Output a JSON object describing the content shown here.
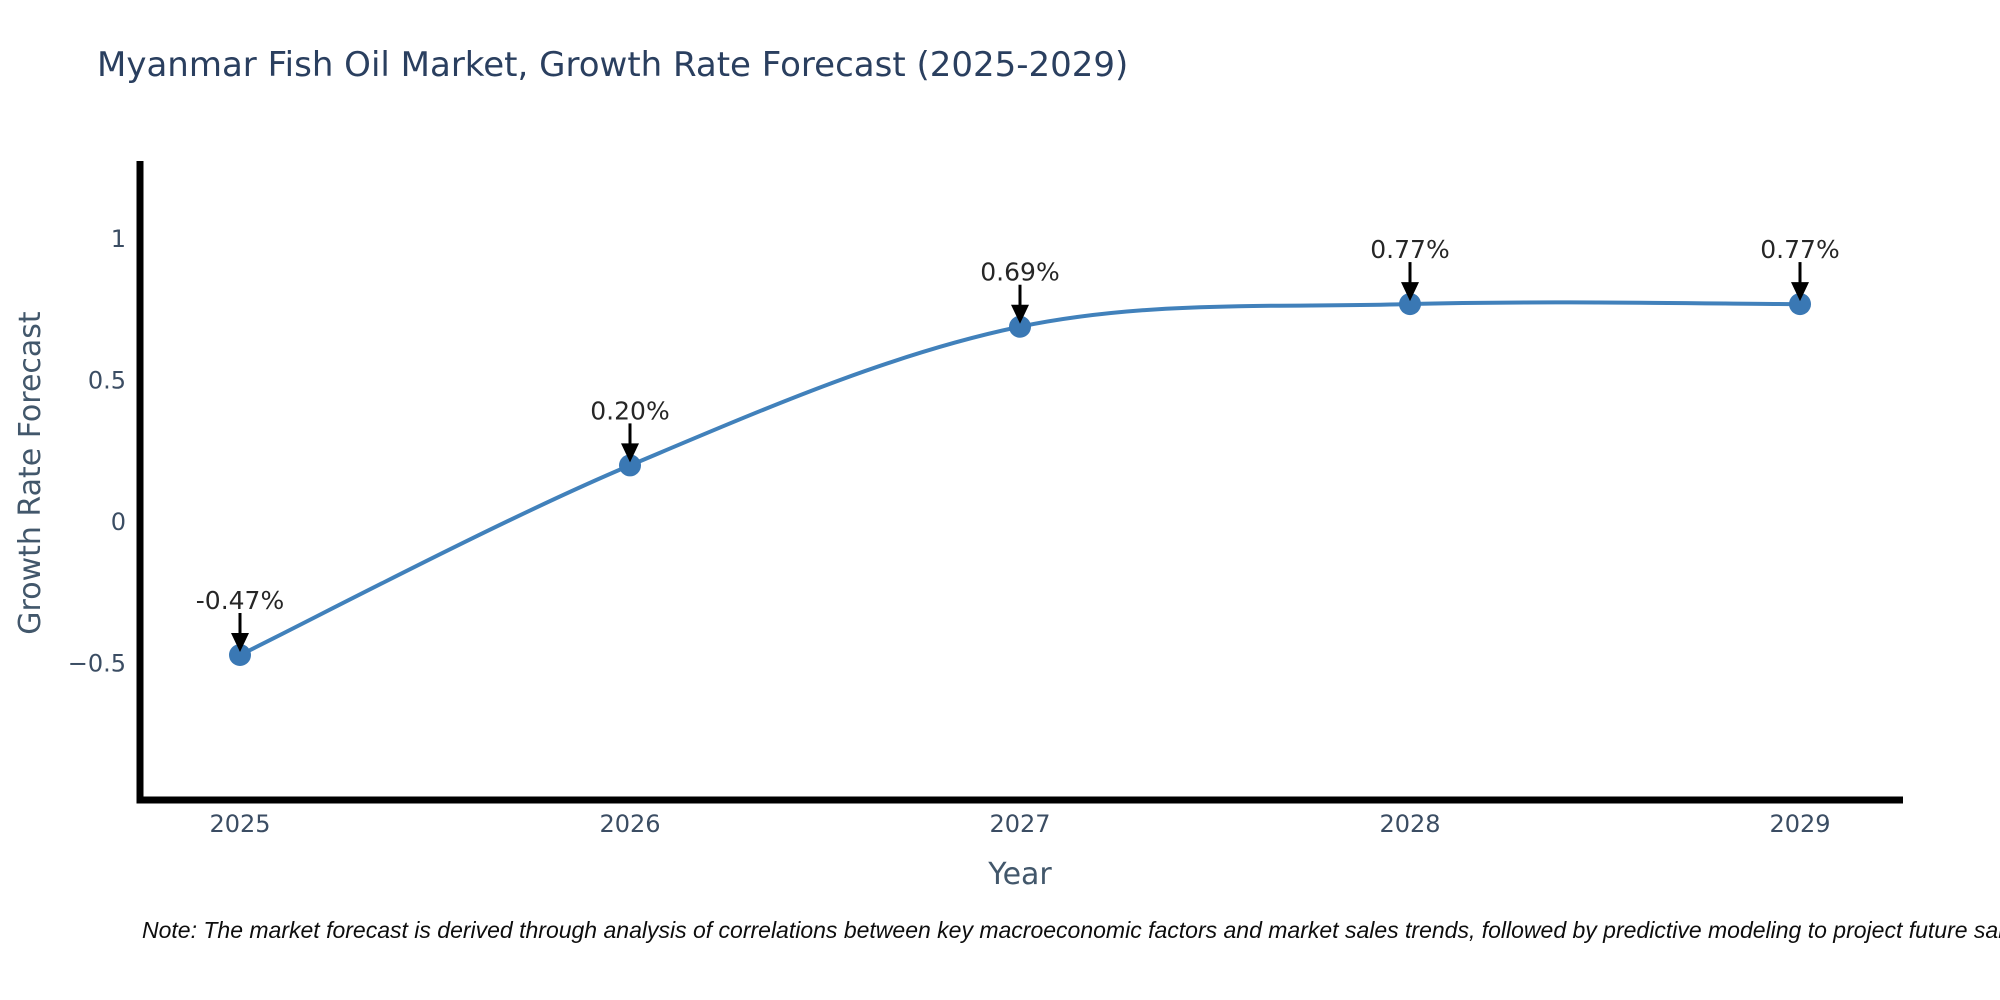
{
  "chart_data": {
    "type": "line",
    "title": "Myanmar Fish Oil Market, Growth Rate Forecast (2025-2029)",
    "xlabel": "Year",
    "ylabel": "Growth Rate Forecast",
    "categories": [
      "2025",
      "2026",
      "2027",
      "2028",
      "2029"
    ],
    "series": [
      {
        "name": "Growth Rate Forecast",
        "values": [
          -0.47,
          0.2,
          0.69,
          0.77,
          0.77
        ]
      }
    ],
    "annotations": [
      "-0.47%",
      "0.20%",
      "0.69%",
      "0.77%",
      "0.77%"
    ],
    "y_ticks": [
      {
        "value": 1,
        "label": "1"
      },
      {
        "value": 0.5,
        "label": "0.5"
      },
      {
        "value": 0,
        "label": "0"
      },
      {
        "value": -0.5,
        "label": "−0.5"
      }
    ],
    "ylim": [
      -0.98,
      1.28
    ],
    "grid": false,
    "legend_position": "none",
    "line_shape": "spline",
    "colors": {
      "line": "#4181bb",
      "marker": "#3a78b4",
      "arrow": "#000000",
      "axis": "#000000",
      "title_text": "#2a3f5f",
      "tick_text": "#3b4d63",
      "axis_title_text": "#42576b",
      "annotation_text": "#262626",
      "background": "#ffffff"
    }
  },
  "note": {
    "text": "Note: The market forecast is derived through analysis of correlations between key macroeconomic factors and market sales trends, followed by predictive modeling to project future sales."
  }
}
